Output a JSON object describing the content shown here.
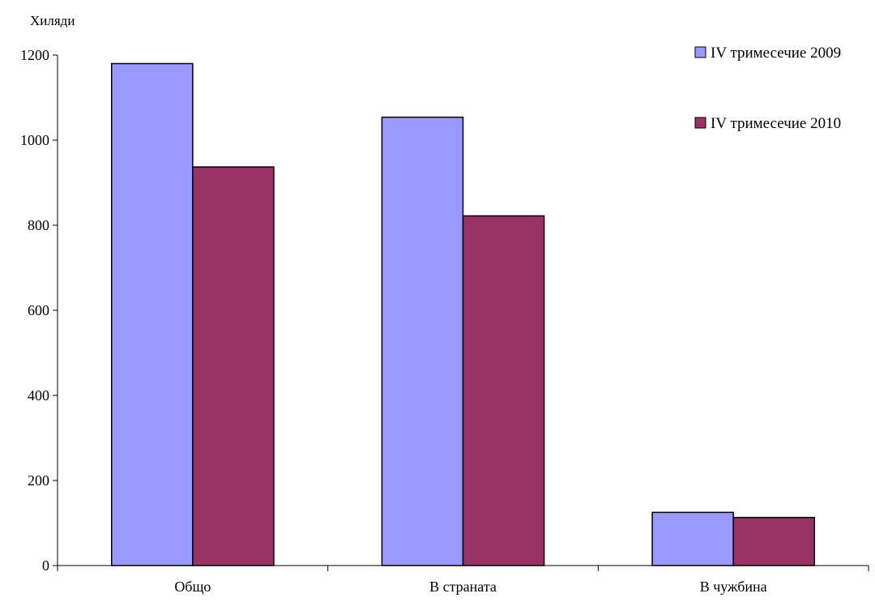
{
  "chart_data": {
    "type": "bar",
    "ylabel": "Хиляди",
    "categories": [
      "Общо",
      "В страната",
      "В чужбина"
    ],
    "series": [
      {
        "name": "IV тримесечие 2009",
        "color": "#9999ff",
        "values": [
          1180,
          1054,
          125
        ]
      },
      {
        "name": "IV тримесечие 2010",
        "color": "#993366",
        "values": [
          937,
          822,
          113
        ]
      }
    ],
    "ylim": [
      0,
      1200
    ],
    "yticks": [
      0,
      200,
      400,
      600,
      800,
      1000,
      1200
    ],
    "ytick_labels": [
      "0",
      "200",
      "400",
      "600",
      "800",
      "1000",
      "1200"
    ],
    "grid": false,
    "legend_position": "top-right"
  }
}
